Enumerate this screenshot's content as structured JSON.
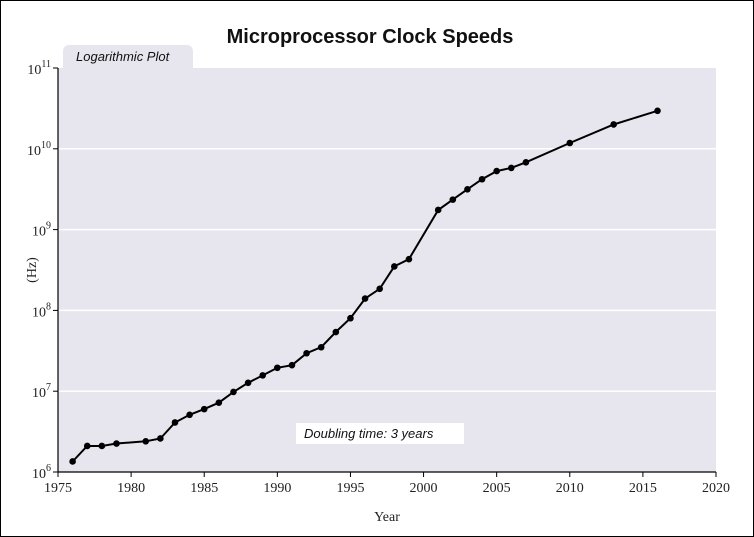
{
  "chart_data": {
    "type": "line",
    "title": "Microprocessor Clock Speeds",
    "xlabel": "Year",
    "ylabel": "(Hz)",
    "xlim": [
      1975,
      2020
    ],
    "ylim": [
      1000000,
      100000000000
    ],
    "yscale": "log",
    "grid": true,
    "x_ticks": [
      "1975",
      "1980",
      "1985",
      "1990",
      "1995",
      "2000",
      "2005",
      "2010",
      "2015",
      "2020"
    ],
    "y_ticks": [
      {
        "base": "10",
        "exp": "6"
      },
      {
        "base": "10",
        "exp": "7"
      },
      {
        "base": "10",
        "exp": "8"
      },
      {
        "base": "10",
        "exp": "9"
      },
      {
        "base": "10",
        "exp": "10"
      },
      {
        "base": "10",
        "exp": "11"
      }
    ],
    "annotations": {
      "plot_tab": "Logarithmic Plot",
      "note": "Doubling time: 3 years"
    },
    "series": [
      {
        "x": [
          1976,
          1977,
          1978,
          1979,
          1981,
          1982,
          1983,
          1984,
          1985,
          1986,
          1987,
          1988,
          1989,
          1990,
          1991,
          1992,
          1993,
          1994,
          1995,
          1996,
          1997,
          1998,
          1999,
          2001,
          2002,
          2003,
          2004,
          2005,
          2006,
          2007,
          2010,
          2013,
          2016
        ],
        "y": [
          1350000,
          2100000,
          2100000,
          2250000,
          2400000,
          2600000,
          4100000,
          5100000,
          6000000,
          7200000,
          9800000,
          12700000,
          15700000,
          19500000,
          21000000,
          29500000,
          35000000,
          54000000,
          80000000,
          140000000,
          185000000,
          350000000,
          430000000,
          1750000000,
          2350000000,
          3150000000,
          4200000000,
          5300000000,
          5800000000,
          6800000000,
          11800000000,
          20000000000,
          29500000000
        ]
      }
    ],
    "colors": {
      "plot_background": "#e7e6ee",
      "grid": "#ffffff",
      "line": "#000000"
    }
  }
}
